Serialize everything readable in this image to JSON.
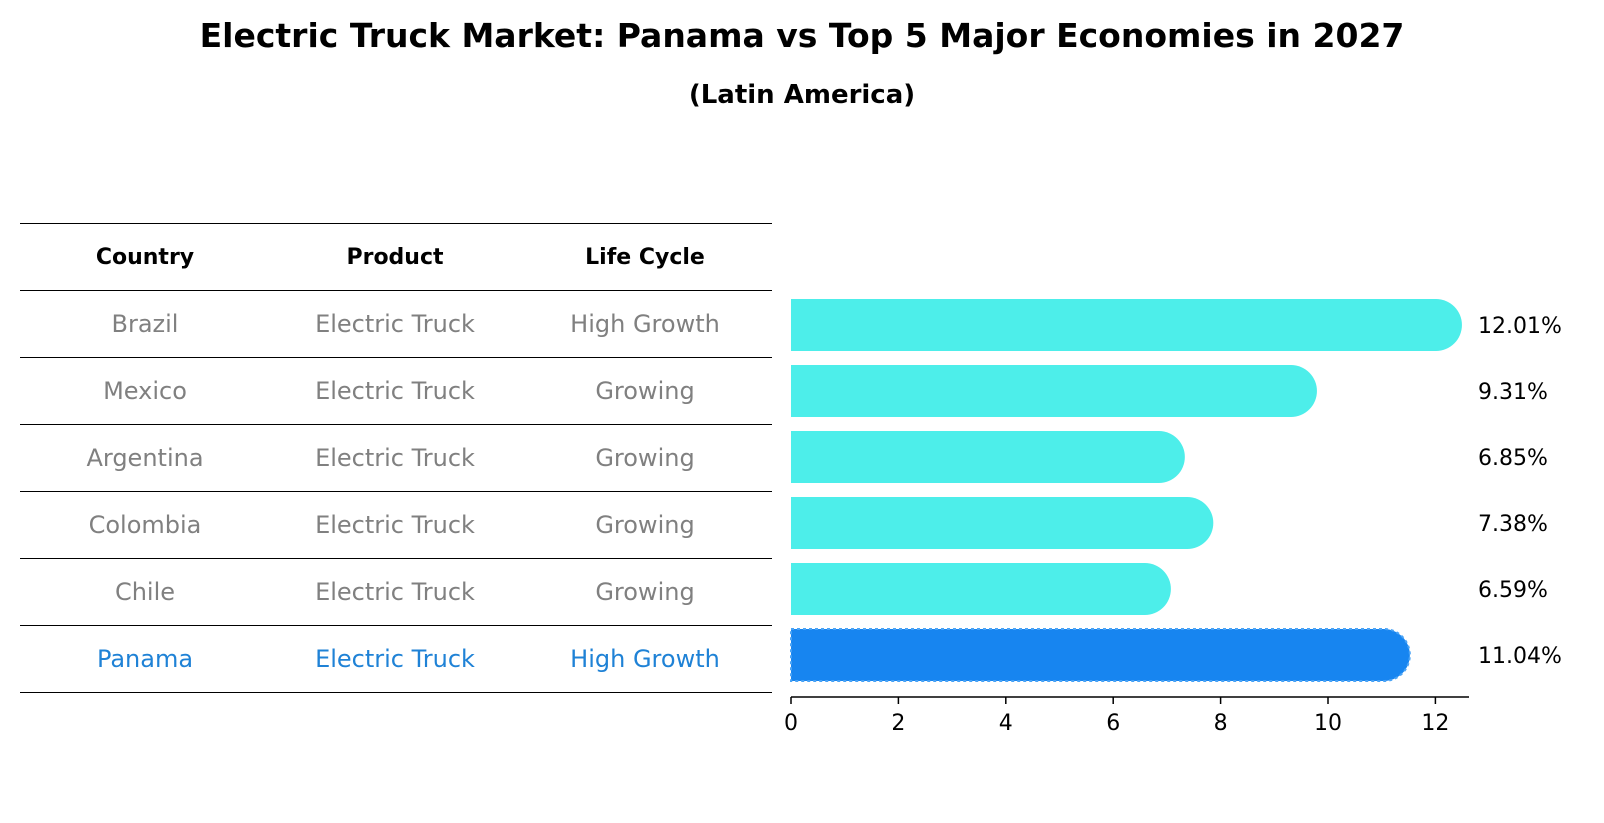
{
  "title": "Electric Truck Market: Panama vs Top 5 Major Economies in 2027",
  "subtitle": "(Latin America)",
  "table": {
    "headers": [
      "Country",
      "Product",
      "Life Cycle"
    ],
    "rows": [
      [
        "Brazil",
        "Electric Truck",
        "High Growth"
      ],
      [
        "Mexico",
        "Electric Truck",
        "Growing"
      ],
      [
        "Argentina",
        "Electric Truck",
        "Growing"
      ],
      [
        "Colombia",
        "Electric Truck",
        "Growing"
      ],
      [
        "Chile",
        "Electric Truck",
        "Growing"
      ],
      [
        "Panama",
        "Electric Truck",
        "High Growth"
      ]
    ]
  },
  "colors": {
    "bar": "#4deeea",
    "highlight": "#1785f0",
    "muted_text": "#808080",
    "highlight_text": "#1f82d6"
  },
  "chart_data": {
    "type": "bar",
    "orientation": "horizontal",
    "title": "Electric Truck Market: Panama vs Top 5 Major Economies in 2027",
    "subtitle": "(Latin America)",
    "categories": [
      "Brazil",
      "Mexico",
      "Argentina",
      "Colombia",
      "Chile",
      "Panama"
    ],
    "values": [
      12.01,
      9.31,
      6.85,
      7.38,
      6.59,
      11.04
    ],
    "labels": [
      "12.01%",
      "9.31%",
      "6.85%",
      "7.38%",
      "6.59%",
      "11.04%"
    ],
    "highlight": "Panama",
    "xticks": [
      0,
      2,
      4,
      6,
      8,
      10,
      12
    ],
    "xlim": [
      0,
      12.6
    ],
    "xlabel": "",
    "ylabel": "",
    "grid": false,
    "legend": "none"
  }
}
